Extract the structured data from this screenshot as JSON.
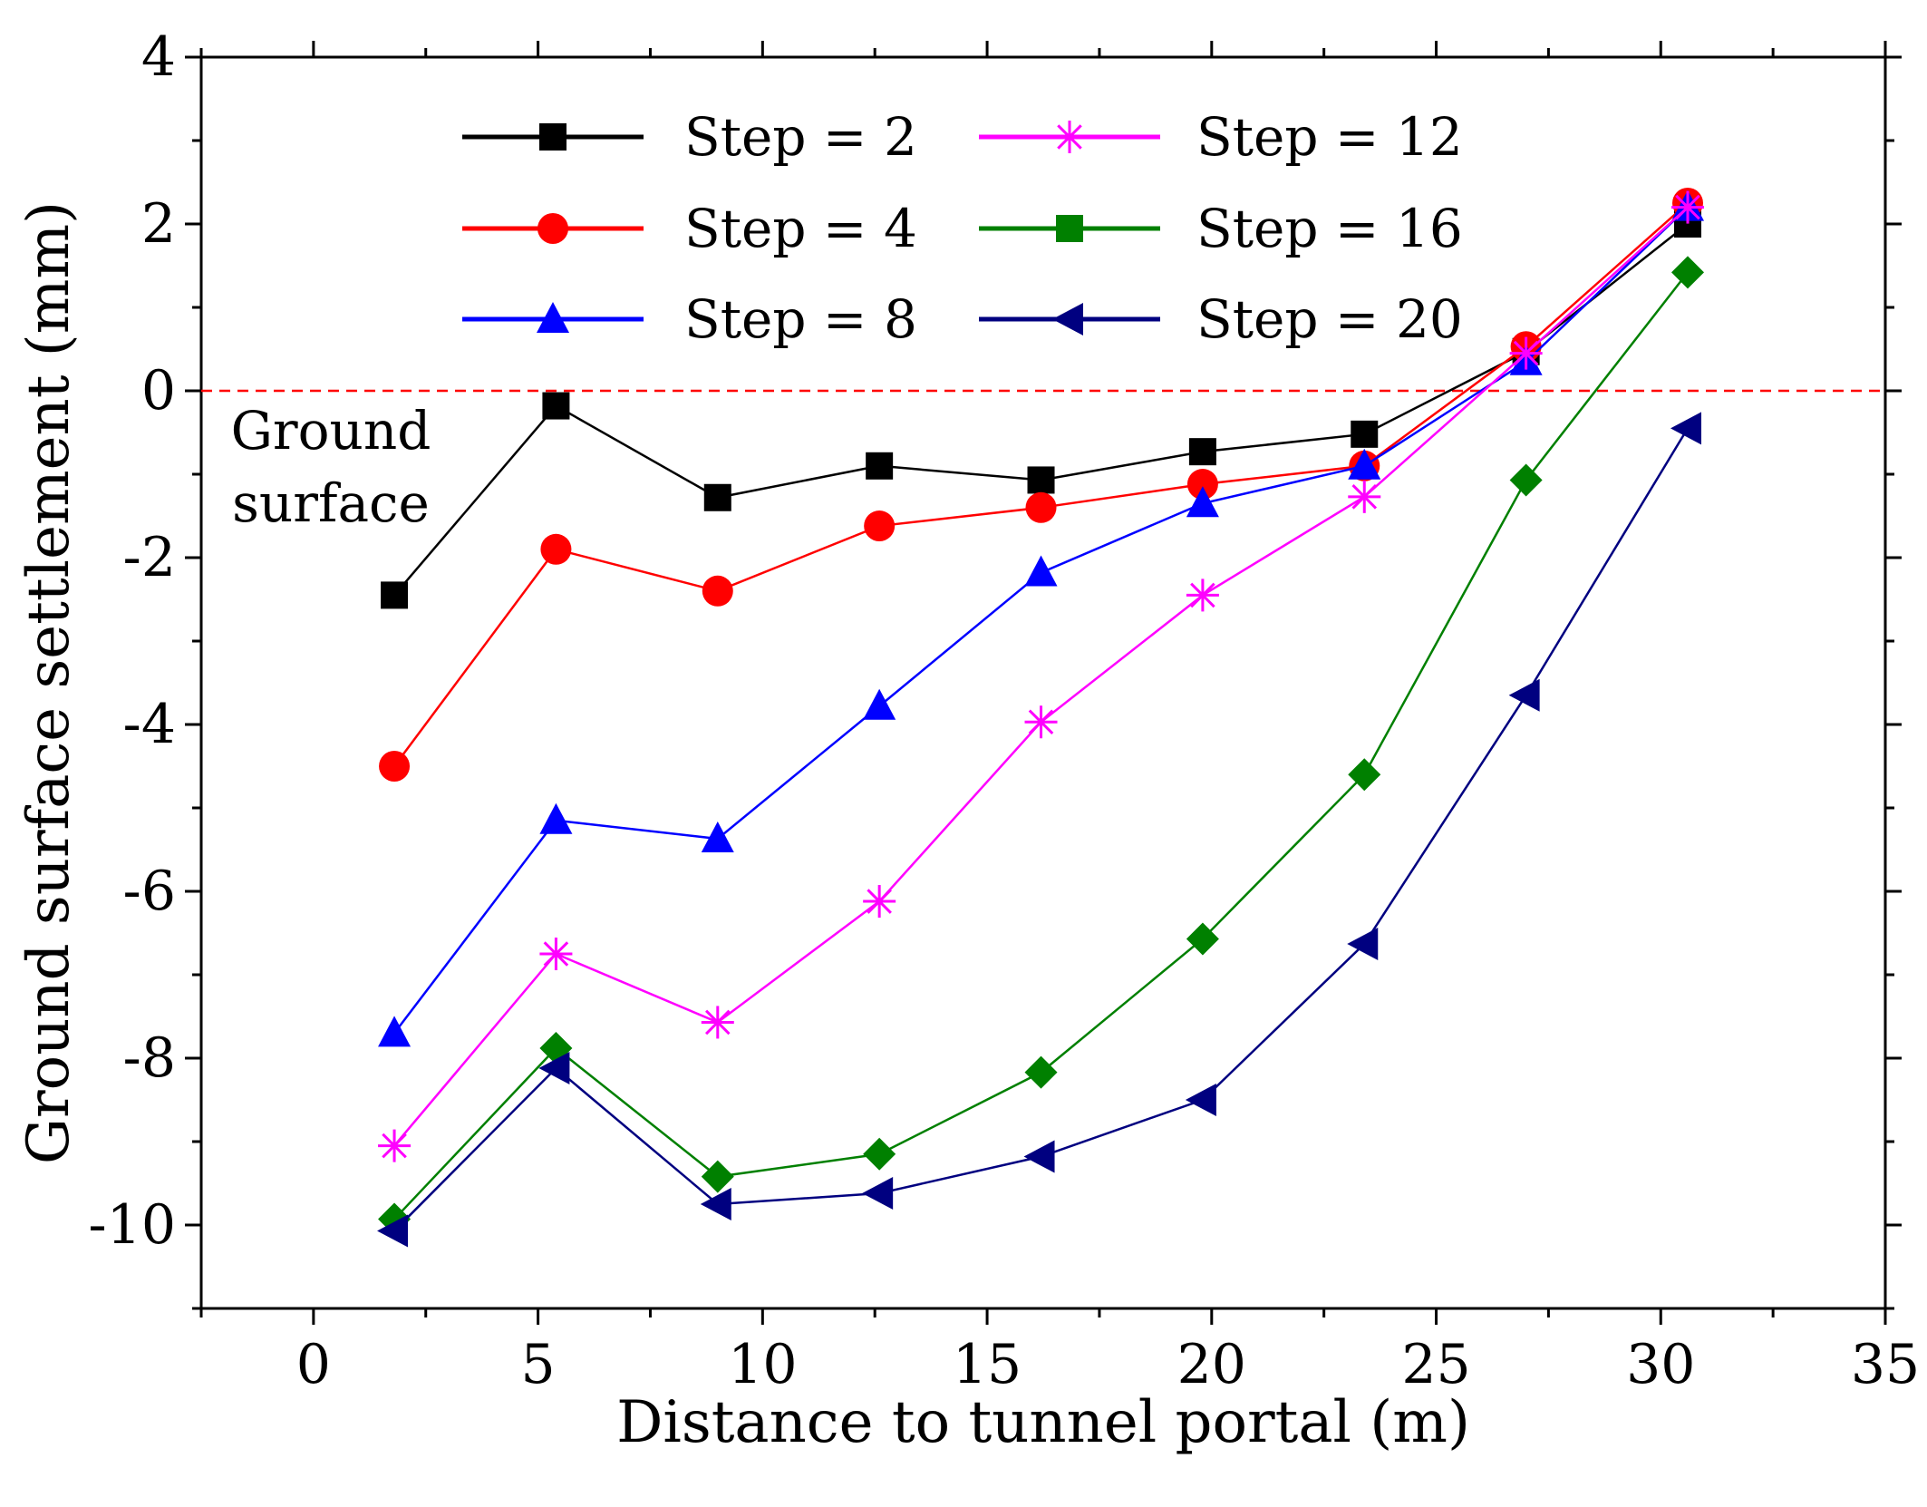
{
  "chart_data": {
    "type": "line",
    "title": "",
    "xlabel": "Distance to tunnel portal (m)",
    "ylabel": "Ground surface settlement (mm)",
    "xlim": [
      -2.5,
      35
    ],
    "ylim": [
      -11,
      4
    ],
    "x_ticks": [
      0,
      5,
      10,
      15,
      20,
      25,
      30,
      35
    ],
    "y_ticks": [
      4,
      2,
      0,
      -2,
      -4,
      -6,
      -8,
      -10
    ],
    "x_tick_labels": [
      "0",
      "5",
      "10",
      "15",
      "20",
      "25",
      "30",
      "35"
    ],
    "y_tick_labels": [
      "4",
      "2",
      "0",
      "-2",
      "-4",
      "-6",
      "-8",
      "-10"
    ],
    "reference_line": {
      "y": 0,
      "color": "#ff0000",
      "style": "dashed"
    },
    "annotation": {
      "lines": [
        "Ground",
        "surface"
      ]
    },
    "legend_position": "top",
    "series": [
      {
        "name": "Step = 2",
        "color": "#000000",
        "marker": "square",
        "x": [
          1.8,
          5.4,
          9.0,
          12.6,
          16.2,
          19.8,
          23.4,
          27.0,
          30.6
        ],
        "y": [
          -2.45,
          -0.18,
          -1.28,
          -0.9,
          -1.07,
          -0.73,
          -0.52,
          0.47,
          2.0
        ]
      },
      {
        "name": "Step = 4",
        "color": "#ff0000",
        "marker": "circle",
        "x": [
          1.8,
          5.4,
          9.0,
          12.6,
          16.2,
          19.8,
          23.4,
          27.0,
          30.6
        ],
        "y": [
          -4.5,
          -1.9,
          -2.4,
          -1.62,
          -1.4,
          -1.12,
          -0.9,
          0.53,
          2.25
        ]
      },
      {
        "name": "Step = 8",
        "color": "#0000ff",
        "marker": "triangle-up",
        "x": [
          1.8,
          5.4,
          9.0,
          12.6,
          16.2,
          19.8,
          23.4,
          27.0,
          30.6
        ],
        "y": [
          -7.7,
          -5.15,
          -5.37,
          -3.78,
          -2.18,
          -1.35,
          -0.9,
          0.35,
          2.2
        ]
      },
      {
        "name": "Step = 12",
        "color": "#ff00ff",
        "marker": "asterisk",
        "x": [
          1.8,
          5.4,
          9.0,
          12.6,
          16.2,
          19.8,
          23.4,
          27.0,
          30.6
        ],
        "y": [
          -9.05,
          -6.75,
          -7.57,
          -6.12,
          -3.97,
          -2.45,
          -1.27,
          0.45,
          2.2
        ]
      },
      {
        "name": "Step = 16",
        "color": "#008000",
        "marker": "diamond",
        "legend_marker": "square",
        "x": [
          1.8,
          5.4,
          9.0,
          12.6,
          16.2,
          19.8,
          23.4,
          27.0,
          30.6
        ],
        "y": [
          -9.93,
          -7.88,
          -9.42,
          -9.15,
          -8.17,
          -6.57,
          -4.6,
          -1.07,
          1.42
        ]
      },
      {
        "name": "Step = 20",
        "color": "#000080",
        "marker": "triangle-left",
        "x": [
          1.8,
          5.4,
          9.0,
          12.6,
          16.2,
          19.8,
          23.4,
          27.0,
          30.6
        ],
        "y": [
          -10.07,
          -8.12,
          -9.75,
          -9.62,
          -9.18,
          -8.5,
          -6.63,
          -3.65,
          -0.45
        ]
      }
    ]
  }
}
